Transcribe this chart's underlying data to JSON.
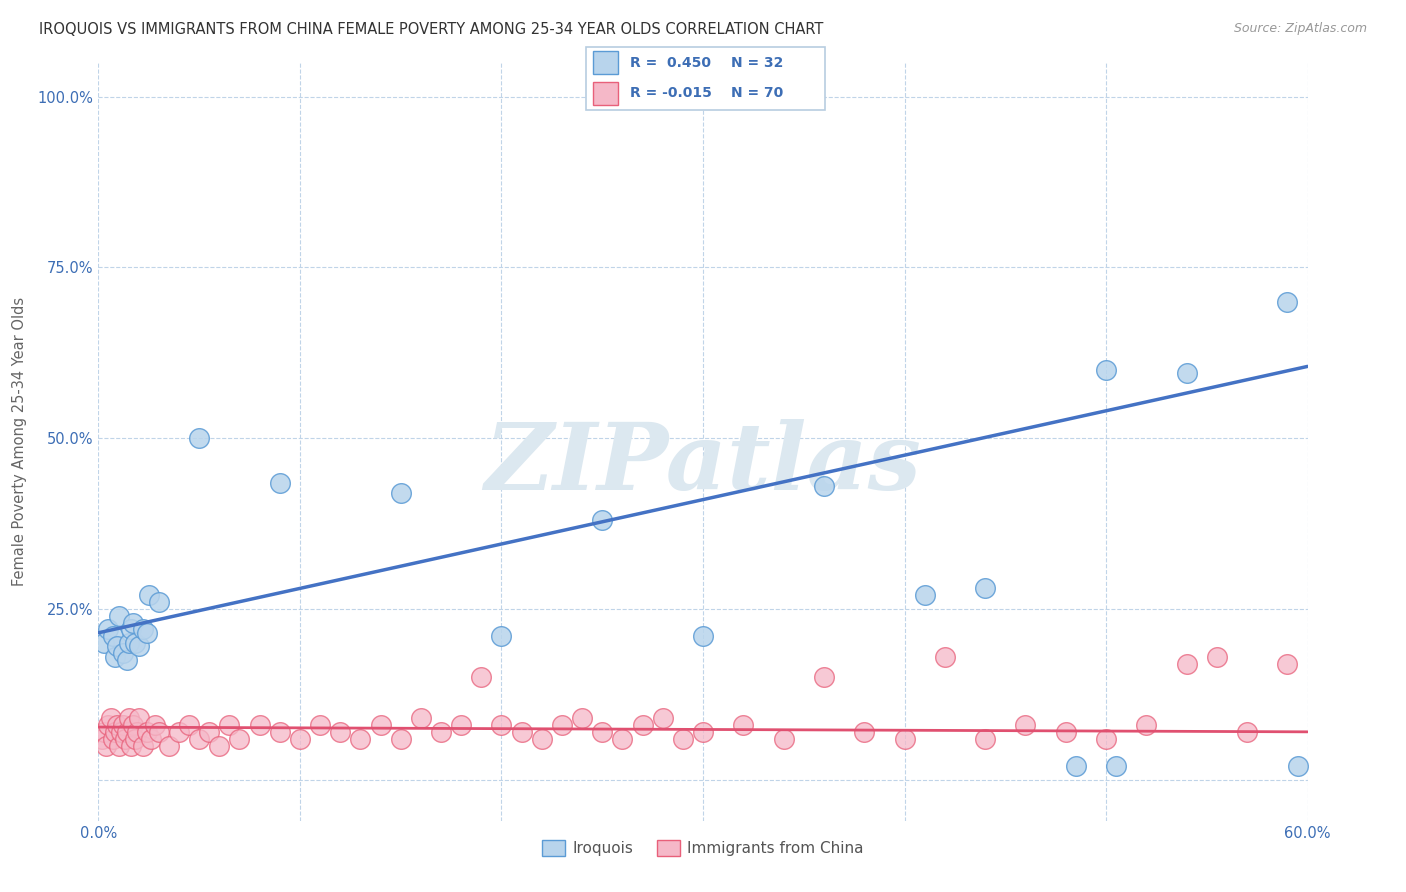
{
  "title": "IROQUOIS VS IMMIGRANTS FROM CHINA FEMALE POVERTY AMONG 25-34 YEAR OLDS CORRELATION CHART",
  "source": "Source: ZipAtlas.com",
  "ylabel": "Female Poverty Among 25-34 Year Olds",
  "xlim": [
    0.0,
    0.6
  ],
  "ylim": [
    -0.06,
    1.05
  ],
  "xticks": [
    0.0,
    0.1,
    0.2,
    0.3,
    0.4,
    0.5,
    0.6
  ],
  "xticklabels": [
    "0.0%",
    "",
    "",
    "",
    "",
    "",
    "60.0%"
  ],
  "yticks": [
    0.0,
    0.25,
    0.5,
    0.75,
    1.0
  ],
  "yticklabels": [
    "",
    "25.0%",
    "50.0%",
    "75.0%",
    "100.0%"
  ],
  "legend_labels": [
    "Iroquois",
    "Immigrants from China"
  ],
  "iroquois_color": "#b8d4ec",
  "iroquois_edge": "#5b9bd5",
  "china_color": "#f5b8c8",
  "china_edge": "#e8607a",
  "iroquois_line_color": "#4472c4",
  "china_line_color": "#e05070",
  "watermark": "ZIPatlas",
  "watermark_color": "#dce8f0",
  "background_color": "#ffffff",
  "grid_color": "#c0d4e8",
  "iroquois_x": [
    0.003,
    0.005,
    0.007,
    0.008,
    0.009,
    0.01,
    0.012,
    0.014,
    0.015,
    0.016,
    0.017,
    0.018,
    0.02,
    0.022,
    0.024,
    0.025,
    0.03,
    0.05,
    0.09,
    0.15,
    0.2,
    0.25,
    0.3,
    0.36,
    0.41,
    0.44,
    0.485,
    0.5,
    0.505,
    0.54,
    0.59,
    0.595
  ],
  "iroquois_y": [
    0.2,
    0.22,
    0.21,
    0.18,
    0.195,
    0.24,
    0.185,
    0.175,
    0.2,
    0.22,
    0.23,
    0.2,
    0.195,
    0.22,
    0.215,
    0.27,
    0.26,
    0.5,
    0.435,
    0.42,
    0.21,
    0.38,
    0.21,
    0.43,
    0.27,
    0.28,
    0.02,
    0.6,
    0.02,
    0.595,
    0.7,
    0.02
  ],
  "china_x": [
    0.002,
    0.003,
    0.004,
    0.005,
    0.006,
    0.007,
    0.008,
    0.009,
    0.01,
    0.011,
    0.012,
    0.013,
    0.014,
    0.015,
    0.016,
    0.017,
    0.018,
    0.019,
    0.02,
    0.022,
    0.024,
    0.026,
    0.028,
    0.03,
    0.035,
    0.04,
    0.045,
    0.05,
    0.055,
    0.06,
    0.065,
    0.07,
    0.08,
    0.09,
    0.1,
    0.11,
    0.12,
    0.13,
    0.14,
    0.15,
    0.16,
    0.17,
    0.18,
    0.19,
    0.2,
    0.21,
    0.22,
    0.23,
    0.24,
    0.25,
    0.26,
    0.27,
    0.28,
    0.29,
    0.3,
    0.32,
    0.34,
    0.36,
    0.38,
    0.4,
    0.42,
    0.44,
    0.46,
    0.48,
    0.5,
    0.52,
    0.54,
    0.555,
    0.57,
    0.59
  ],
  "china_y": [
    0.06,
    0.07,
    0.05,
    0.08,
    0.09,
    0.06,
    0.07,
    0.08,
    0.05,
    0.07,
    0.08,
    0.06,
    0.07,
    0.09,
    0.05,
    0.08,
    0.06,
    0.07,
    0.09,
    0.05,
    0.07,
    0.06,
    0.08,
    0.07,
    0.05,
    0.07,
    0.08,
    0.06,
    0.07,
    0.05,
    0.08,
    0.06,
    0.08,
    0.07,
    0.06,
    0.08,
    0.07,
    0.06,
    0.08,
    0.06,
    0.09,
    0.07,
    0.08,
    0.15,
    0.08,
    0.07,
    0.06,
    0.08,
    0.09,
    0.07,
    0.06,
    0.08,
    0.09,
    0.06,
    0.07,
    0.08,
    0.06,
    0.15,
    0.07,
    0.06,
    0.18,
    0.06,
    0.08,
    0.07,
    0.06,
    0.08,
    0.17,
    0.18,
    0.07,
    0.17
  ],
  "irq_line_x0": 0.0,
  "irq_line_y0": 0.215,
  "irq_line_x1": 0.6,
  "irq_line_y1": 0.605,
  "chn_line_x0": 0.0,
  "chn_line_y0": 0.077,
  "chn_line_x1": 0.6,
  "chn_line_y1": 0.07
}
